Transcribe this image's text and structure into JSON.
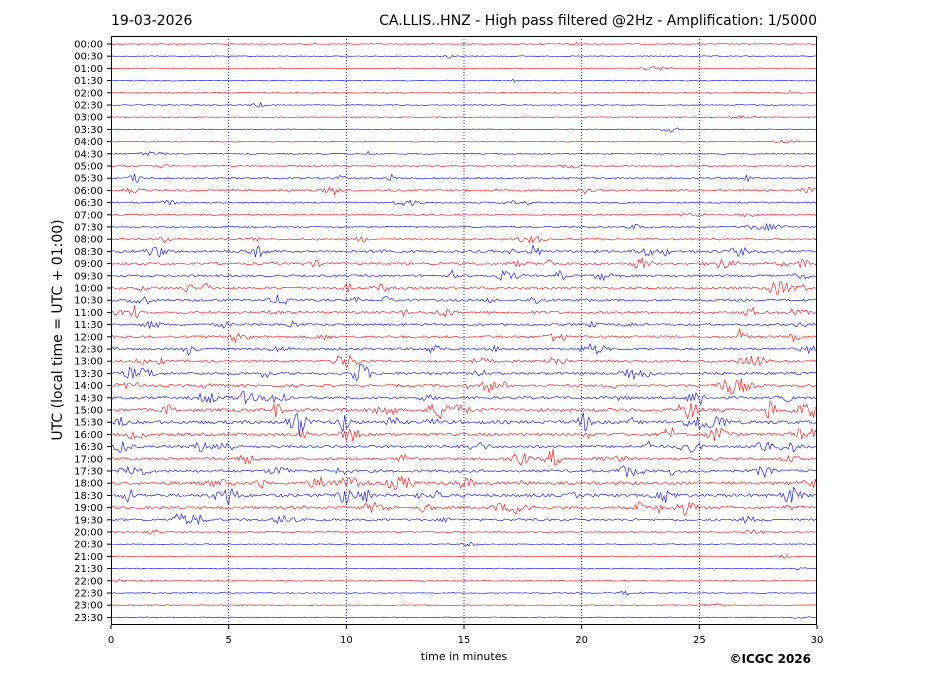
{
  "header": {
    "date": "19-03-2026",
    "title": "CA.LLIS..HNZ - High pass filtered @2Hz - Amplification: 1/5000"
  },
  "footer": {
    "copyright": "©ICGC 2026"
  },
  "chart_data": {
    "type": "line",
    "xlabel": "time in minutes",
    "ylabel": "UTC (local time = UTC + 01:00)",
    "xlim": [
      0,
      30
    ],
    "x_ticks": [
      "0",
      "5",
      "10",
      "15",
      "20",
      "25",
      "30"
    ],
    "grid": "vertical dotted lines at 5, 10, 15, 20, 25 minutes",
    "series_colors": [
      "#ff0000",
      "#0000ff"
    ],
    "rows": [
      "00:00",
      "00:30",
      "01:00",
      "01:30",
      "02:00",
      "02:30",
      "03:00",
      "03:30",
      "04:00",
      "04:30",
      "05:00",
      "05:30",
      "06:00",
      "06:30",
      "07:00",
      "07:30",
      "08:00",
      "08:30",
      "09:00",
      "09:30",
      "10:00",
      "10:30",
      "11:00",
      "11:30",
      "12:00",
      "12:30",
      "13:00",
      "13:30",
      "14:00",
      "14:30",
      "15:00",
      "15:30",
      "16:00",
      "16:30",
      "17:00",
      "17:30",
      "18:00",
      "18:30",
      "19:00",
      "19:30",
      "20:00",
      "20:30",
      "21:00",
      "21:30",
      "22:00",
      "22:30",
      "23:00",
      "23:30"
    ],
    "activity": [
      0.05,
      0.04,
      0.04,
      0.05,
      0.04,
      0.05,
      0.06,
      0.06,
      0.07,
      0.12,
      0.15,
      0.3,
      0.35,
      0.2,
      0.15,
      0.2,
      0.3,
      0.55,
      0.5,
      0.45,
      0.55,
      0.5,
      0.5,
      0.45,
      0.55,
      0.5,
      0.55,
      0.6,
      0.55,
      0.6,
      0.75,
      0.85,
      0.7,
      0.65,
      0.6,
      0.6,
      0.7,
      0.75,
      0.6,
      0.5,
      0.15,
      0.05,
      0.05,
      0.05,
      0.04,
      0.04,
      0.04,
      0.04
    ]
  }
}
